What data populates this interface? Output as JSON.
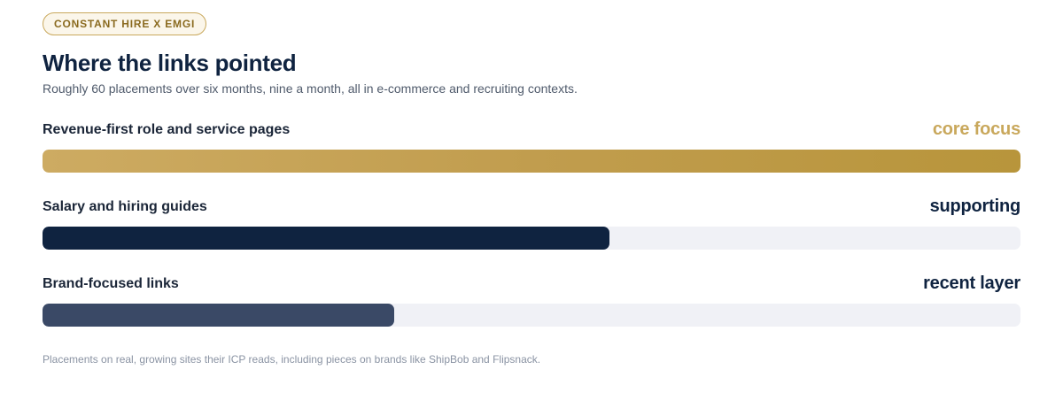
{
  "badge": "CONSTANT HIRE X EMGI",
  "title": "Where the links pointed",
  "subtitle": "Roughly 60 placements over six months, nine a month, all in e-commerce and recruiting contexts.",
  "chart_data": {
    "type": "bar",
    "orientation": "horizontal",
    "categories": [
      "Revenue-first role and service pages",
      "Salary and hiring guides",
      "Brand-focused links"
    ],
    "values": [
      100,
      58,
      36
    ],
    "unit": "percent of track",
    "tags": [
      "core focus",
      "supporting",
      "recent layer"
    ],
    "colors": [
      "#c5a052",
      "#0f2340",
      "#3a4966"
    ],
    "tag_colors": [
      "#c9a85c",
      "#0f2340",
      "#0f2340"
    ],
    "track_color": "#f0f1f6"
  },
  "footnote": "Placements on real, growing sites their ICP reads, including pieces on brands like ShipBob and Flipsnack."
}
